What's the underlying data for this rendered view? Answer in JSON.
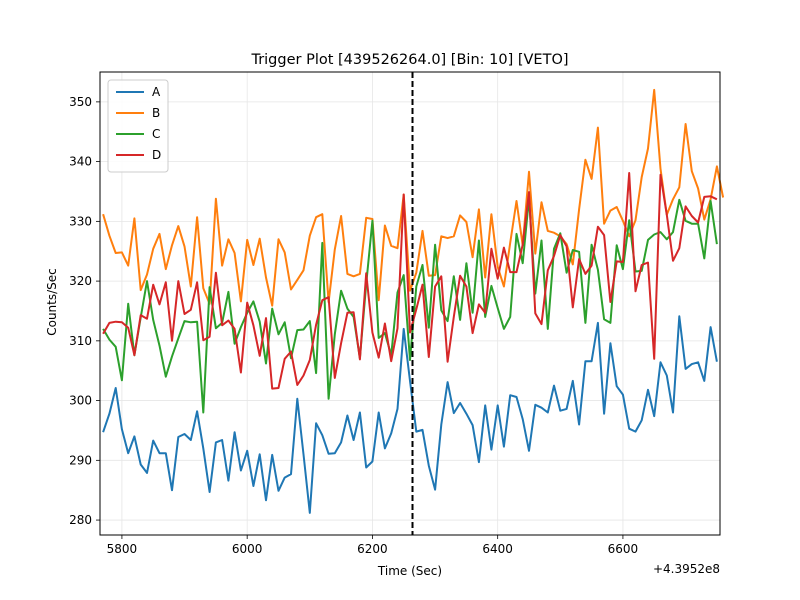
{
  "chart_data": {
    "type": "line",
    "title": "Trigger Plot [439526264.0] [Bin: 10] [VETO]",
    "xlabel": "Time (Sec)",
    "ylabel": "Counts/Sec",
    "x_offset_label": "+4.3952e8",
    "xlim": [
      5765,
      6755
    ],
    "ylim": [
      277.5,
      355
    ],
    "x_ticks": [
      5800,
      6000,
      6200,
      6400,
      6600
    ],
    "x_tick_labels": [
      "5800",
      "6000",
      "6200",
      "6400",
      "6600"
    ],
    "y_ticks": [
      280,
      290,
      300,
      310,
      320,
      330,
      340,
      350
    ],
    "y_tick_labels": [
      "280",
      "290",
      "300",
      "310",
      "320",
      "330",
      "340",
      "350"
    ],
    "grid": true,
    "legend_position": "upper-left",
    "trigger_line_x": 6264,
    "x_start": 5770,
    "x_step": 10,
    "series": [
      {
        "name": "A",
        "color": "#1f77b4",
        "values": [
          294.7,
          297.8,
          302.1,
          295.2,
          291.2,
          294.0,
          289.3,
          287.9,
          293.3,
          291.2,
          291.2,
          285.0,
          293.9,
          294.4,
          293.4,
          298.2,
          292.0,
          284.7,
          293.0,
          293.4,
          286.6,
          294.7,
          288.3,
          291.6,
          285.7,
          291.0,
          283.3,
          290.9,
          284.9,
          287.1,
          287.7,
          300.3,
          291.0,
          281.2,
          296.2,
          294.2,
          291.1,
          291.2,
          293.0,
          297.5,
          293.4,
          298.0,
          288.8,
          289.8,
          298.0,
          292.0,
          294.5,
          298.6,
          312.0,
          303.3,
          294.8,
          295.1,
          289.1,
          285.1,
          296.0,
          303.1,
          297.9,
          299.6,
          297.8,
          295.9,
          289.7,
          299.2,
          291.8,
          299.2,
          292.3,
          300.9,
          300.6,
          296.9,
          291.6,
          299.3,
          298.8,
          298.0,
          302.5,
          298.3,
          298.6,
          303.3,
          296.0,
          306.6,
          306.6,
          313.0,
          297.8,
          309.6,
          302.4,
          301.0,
          295.3,
          294.8,
          296.7,
          301.8,
          297.4,
          306.4,
          304.2,
          298.0,
          314.1,
          305.3,
          306.1,
          306.4,
          303.3,
          312.3,
          306.5
        ]
      },
      {
        "name": "B",
        "color": "#ff7f0e",
        "values": [
          331.2,
          327.6,
          324.7,
          324.8,
          322.6,
          330.5,
          318.5,
          321.1,
          325.4,
          327.9,
          322.0,
          326.0,
          329.2,
          325.8,
          319.1,
          330.7,
          318.8,
          316.2,
          333.8,
          322.6,
          327.0,
          324.7,
          316.6,
          326.9,
          322.7,
          327.1,
          320.6,
          315.9,
          327.0,
          324.8,
          318.6,
          320.2,
          321.8,
          327.6,
          330.7,
          331.2,
          316.5,
          325.3,
          330.9,
          321.2,
          320.8,
          321.2,
          330.6,
          330.4,
          316.8,
          329.3,
          325.9,
          325.5,
          334.5,
          318.4,
          321.4,
          328.4,
          320.9,
          321.0,
          327.5,
          327.2,
          327.5,
          331.0,
          329.9,
          324.0,
          332.0,
          320.6,
          331.2,
          322.4,
          319.1,
          326.4,
          333.4,
          326.0,
          338.3,
          324.6,
          333.2,
          328.4,
          328.1,
          327.5,
          326.2,
          322.8,
          332.0,
          340.3,
          337.1,
          345.7,
          329.6,
          331.8,
          332.4,
          330.1,
          327.5,
          330.2,
          337.4,
          342.2,
          352.0,
          338.8,
          331.1,
          333.7,
          335.7,
          346.3,
          338.4,
          335.5,
          330.3,
          333.7,
          339.2,
          334.0
        ]
      },
      {
        "name": "C",
        "color": "#2ca02c",
        "values": [
          312.0,
          310.2,
          309.0,
          303.4,
          316.2,
          307.6,
          313.9,
          320.0,
          313.5,
          309.2,
          304.0,
          307.4,
          310.4,
          313.3,
          313.1,
          313.2,
          298.0,
          319.0,
          312.1,
          313.0,
          318.2,
          309.5,
          312.3,
          314.7,
          316.6,
          313.2,
          306.2,
          315.4,
          311.1,
          313.1,
          307.1,
          311.8,
          311.9,
          313.3,
          304.6,
          326.4,
          300.3,
          311.1,
          318.4,
          315.4,
          314.0,
          307.1,
          319.5,
          330.1,
          310.5,
          311.3,
          307.6,
          318.1,
          321.0,
          306.8,
          319.1,
          322.7,
          312.2,
          326.1,
          315.1,
          313.3,
          320.8,
          313.5,
          323.0,
          314.7,
          326.8,
          314.0,
          319.2,
          315.5,
          312.0,
          314.0,
          327.9,
          323.0,
          333.9,
          317.9,
          326.8,
          312.0,
          325.4,
          328.0,
          321.4,
          325.2,
          324.9,
          313.0,
          326.1,
          321.9,
          313.6,
          313.0,
          326.0,
          322.0,
          330.2,
          321.6,
          321.7,
          326.9,
          327.8,
          328.2,
          327.0,
          328.2,
          333.6,
          330.1,
          329.6,
          329.6,
          323.8,
          333.4,
          326.2
        ]
      },
      {
        "name": "D",
        "color": "#d62728",
        "values": [
          311.2,
          313.0,
          313.2,
          313.1,
          312.2,
          307.6,
          314.3,
          313.7,
          319.4,
          316.1,
          319.8,
          310.0,
          320.0,
          314.5,
          315.2,
          319.8,
          310.1,
          310.7,
          321.4,
          312.6,
          313.4,
          312.0,
          304.7,
          316.4,
          312.6,
          307.5,
          313.8,
          302.0,
          302.1,
          307.0,
          308.2,
          302.6,
          304.2,
          306.8,
          312.7,
          316.8,
          317.3,
          303.8,
          309.6,
          314.7,
          314.8,
          306.9,
          321.3,
          311.4,
          307.2,
          312.9,
          306.6,
          312.1,
          334.5,
          311.4,
          315.3,
          319.4,
          307.3,
          319.1,
          320.8,
          306.5,
          314.0,
          320.9,
          319.1,
          311.3,
          316.1,
          314.7,
          325.4,
          320.4,
          325.6,
          321.5,
          321.5,
          326.1,
          334.9,
          314.6,
          312.8,
          321.8,
          324.2,
          327.7,
          325.8,
          315.6,
          323.7,
          321.2,
          322.6,
          329.1,
          327.7,
          316.5,
          323.3,
          323.2,
          338.1,
          318.3,
          322.7,
          323.1,
          307.0,
          337.8,
          331.1,
          323.4,
          325.5,
          332.5,
          330.9,
          329.8,
          334.1,
          334.2,
          333.7
        ]
      }
    ]
  }
}
